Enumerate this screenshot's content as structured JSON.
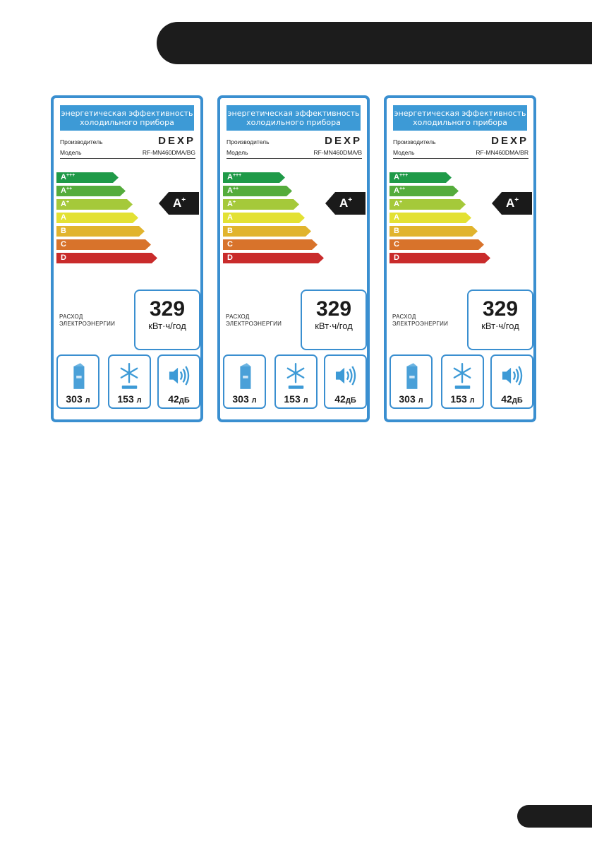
{
  "labels": [
    {
      "title_line1": "энергетическая эффективность",
      "title_line2": "холодильного прибора",
      "manufacturer_label": "Производитель",
      "brand": "DEXP",
      "model_label": "Модель",
      "model": "RF-MN460DMA/BG",
      "class_scale": [
        {
          "base": "A",
          "sup": "+++",
          "color": "#1f9a48"
        },
        {
          "base": "A",
          "sup": "++",
          "color": "#55ac3c"
        },
        {
          "base": "A",
          "sup": "+",
          "color": "#a5c93a"
        },
        {
          "base": "A",
          "sup": "",
          "color": "#e3e133"
        },
        {
          "base": "B",
          "sup": "",
          "color": "#e1b42d"
        },
        {
          "base": "C",
          "sup": "",
          "color": "#d8732b"
        },
        {
          "base": "D",
          "sup": "",
          "color": "#c92b2b"
        }
      ],
      "rating_base": "A",
      "rating_sup": "+",
      "consumption_line1": "РАСХОД",
      "consumption_line2": "ЭЛЕКТРОЭНЕРГИИ",
      "consumption_value": "329",
      "consumption_unit": "кВт·ч/год",
      "fridge_volume": "303",
      "fridge_unit": "л",
      "freezer_volume": "153",
      "freezer_unit": "л",
      "noise": "42",
      "noise_unit": "дБ",
      "icons": [
        "fridge-icon",
        "snowflake-icon",
        "speaker-icon"
      ]
    },
    {
      "title_line1": "энергетическая эффективность",
      "title_line2": "холодильного прибора",
      "manufacturer_label": "Производитель",
      "brand": "DEXP",
      "model_label": "Модель",
      "model": "RF-MN460DMA/B",
      "rating_base": "A",
      "rating_sup": "+",
      "consumption_line1": "РАСХОД",
      "consumption_line2": "ЭЛЕКТРОЭНЕРГИИ",
      "consumption_value": "329",
      "consumption_unit": "кВт·ч/год",
      "fridge_volume": "303",
      "fridge_unit": "л",
      "freezer_volume": "153",
      "freezer_unit": "л",
      "noise": "42",
      "noise_unit": "дБ"
    },
    {
      "title_line1": "энергетическая эффективность",
      "title_line2": "холодильного прибора",
      "manufacturer_label": "Производитель",
      "brand": "DEXP",
      "model_label": "Модель",
      "model": "RF-MN460DMA/BR",
      "rating_base": "A",
      "rating_sup": "+",
      "consumption_line1": "РАСХОД",
      "consumption_line2": "ЭЛЕКТРОЭНЕРГИИ",
      "consumption_value": "329",
      "consumption_unit": "кВт·ч/год",
      "fridge_volume": "303",
      "fridge_unit": "л",
      "freezer_volume": "153",
      "freezer_unit": "л",
      "noise": "42",
      "noise_unit": "дБ"
    }
  ],
  "colors": {
    "label_border": "#3a8fd0",
    "title_bg": "#3d9ad6",
    "header_bar": "#1c1c1c"
  }
}
